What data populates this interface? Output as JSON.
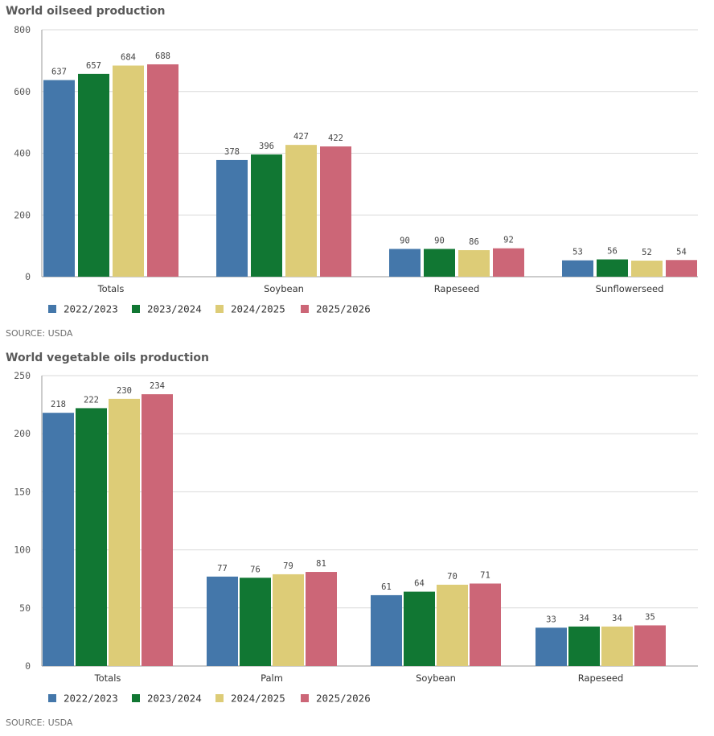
{
  "colors": {
    "2022/2023": "#4477aa",
    "2023/2024": "#117733",
    "2024/2025": "#ddcc77",
    "2025/2026": "#cc6677"
  },
  "chart_data": [
    {
      "type": "bar",
      "title": "World oilseed production",
      "source": "SOURCE: USDA",
      "categories": [
        "Totals",
        "Soybean",
        "Rapeseed",
        "Sunflowerseed"
      ],
      "series": [
        {
          "name": "2022/2023",
          "values": [
            637,
            378,
            90,
            53
          ]
        },
        {
          "name": "2023/2024",
          "values": [
            657,
            396,
            90,
            56
          ]
        },
        {
          "name": "2024/2025",
          "values": [
            684,
            427,
            86,
            52
          ]
        },
        {
          "name": "2025/2026",
          "values": [
            688,
            422,
            92,
            54
          ]
        }
      ],
      "yticks": [
        0,
        200,
        400,
        600,
        800
      ],
      "ylim": [
        0,
        800
      ],
      "grid": true,
      "legend": "bottom-left"
    },
    {
      "type": "bar",
      "title": "World vegetable oils production",
      "source": "SOURCE: USDA",
      "categories": [
        "Totals",
        "Palm",
        "Soybean",
        "Rapeseed"
      ],
      "series": [
        {
          "name": "2022/2023",
          "values": [
            218,
            77,
            61,
            33
          ]
        },
        {
          "name": "2023/2024",
          "values": [
            222,
            76,
            64,
            34
          ]
        },
        {
          "name": "2024/2025",
          "values": [
            230,
            79,
            70,
            34
          ]
        },
        {
          "name": "2025/2026",
          "values": [
            234,
            81,
            71,
            35
          ]
        }
      ],
      "yticks": [
        0,
        50,
        100,
        150,
        200,
        250
      ],
      "ylim": [
        0,
        250
      ],
      "grid": true,
      "legend": "bottom-left"
    }
  ]
}
